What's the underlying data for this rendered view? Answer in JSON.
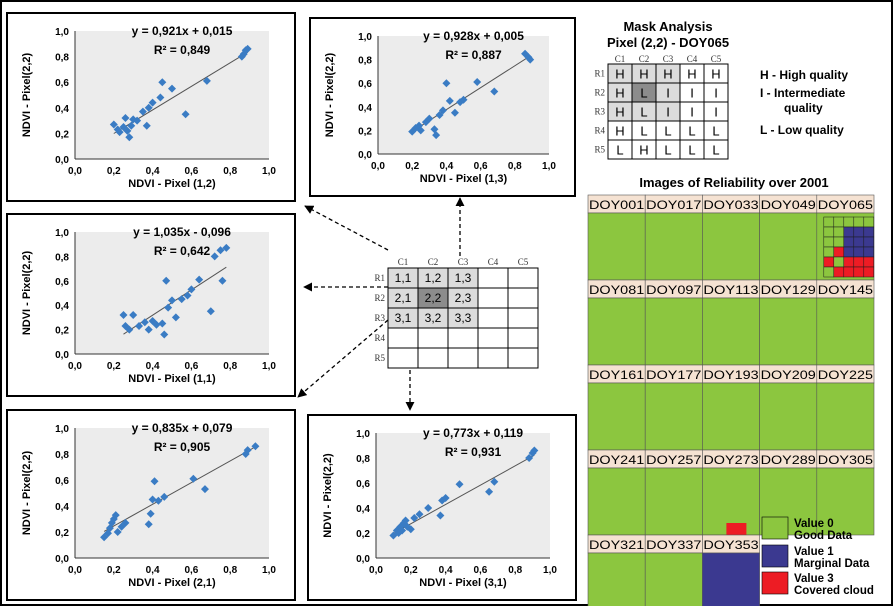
{
  "scatter_panels": [
    {
      "equation": "y = 0,921x + 0,015",
      "r2": "R² = 0,849",
      "xlabel": "NDVI - Pixel (1,2)",
      "ylabel": "NDVI - Pixel(2,2)",
      "slope": 0.921,
      "intercept": 0.015,
      "points": [
        [
          0.2,
          0.27
        ],
        [
          0.22,
          0.23
        ],
        [
          0.23,
          0.21
        ],
        [
          0.25,
          0.25
        ],
        [
          0.26,
          0.32
        ],
        [
          0.27,
          0.22
        ],
        [
          0.28,
          0.17
        ],
        [
          0.29,
          0.26
        ],
        [
          0.3,
          0.31
        ],
        [
          0.32,
          0.3
        ],
        [
          0.35,
          0.37
        ],
        [
          0.37,
          0.26
        ],
        [
          0.38,
          0.4
        ],
        [
          0.4,
          0.44
        ],
        [
          0.44,
          0.48
        ],
        [
          0.45,
          0.6
        ],
        [
          0.5,
          0.55
        ],
        [
          0.57,
          0.35
        ],
        [
          0.68,
          0.61
        ],
        [
          0.86,
          0.8
        ],
        [
          0.87,
          0.82
        ],
        [
          0.88,
          0.85
        ],
        [
          0.89,
          0.86
        ]
      ]
    },
    {
      "equation": "y = 0,928x + 0,005",
      "r2": "R² = 0,887",
      "xlabel": "NDVI - Pixel (1,3)",
      "ylabel": "NDVI - Pixel(2,2)",
      "slope": 0.928,
      "intercept": 0.005,
      "points": [
        [
          0.2,
          0.19
        ],
        [
          0.22,
          0.22
        ],
        [
          0.24,
          0.24
        ],
        [
          0.25,
          0.2
        ],
        [
          0.28,
          0.27
        ],
        [
          0.3,
          0.3
        ],
        [
          0.33,
          0.21
        ],
        [
          0.34,
          0.16
        ],
        [
          0.36,
          0.33
        ],
        [
          0.38,
          0.37
        ],
        [
          0.4,
          0.6
        ],
        [
          0.42,
          0.45
        ],
        [
          0.45,
          0.35
        ],
        [
          0.48,
          0.44
        ],
        [
          0.5,
          0.46
        ],
        [
          0.58,
          0.61
        ],
        [
          0.68,
          0.53
        ],
        [
          0.86,
          0.85
        ],
        [
          0.88,
          0.82
        ],
        [
          0.89,
          0.8
        ]
      ]
    },
    {
      "equation": "y = 1,035x - 0,096",
      "r2": "R² = 0,642",
      "xlabel": "NDVI - Pixel (1,1)",
      "ylabel": "NDVI - Pixel(2,2)",
      "slope": 1.035,
      "intercept": -0.096,
      "points": [
        [
          0.25,
          0.32
        ],
        [
          0.26,
          0.23
        ],
        [
          0.28,
          0.2
        ],
        [
          0.3,
          0.32
        ],
        [
          0.33,
          0.23
        ],
        [
          0.36,
          0.26
        ],
        [
          0.38,
          0.2
        ],
        [
          0.4,
          0.27
        ],
        [
          0.42,
          0.24
        ],
        [
          0.45,
          0.25
        ],
        [
          0.46,
          0.16
        ],
        [
          0.47,
          0.6
        ],
        [
          0.48,
          0.38
        ],
        [
          0.5,
          0.44
        ],
        [
          0.52,
          0.3
        ],
        [
          0.55,
          0.45
        ],
        [
          0.58,
          0.48
        ],
        [
          0.6,
          0.53
        ],
        [
          0.64,
          0.61
        ],
        [
          0.7,
          0.35
        ],
        [
          0.72,
          0.8
        ],
        [
          0.75,
          0.85
        ],
        [
          0.78,
          0.87
        ],
        [
          0.76,
          0.6
        ]
      ]
    },
    {
      "equation": "y = 0,835x + 0,079",
      "r2": "R² = 0,905",
      "xlabel": "NDVI - Pixel (2,1)",
      "ylabel": "NDVI - Pixel(2,2)",
      "slope": 0.835,
      "intercept": 0.079,
      "points": [
        [
          0.15,
          0.16
        ],
        [
          0.17,
          0.19
        ],
        [
          0.18,
          0.23
        ],
        [
          0.19,
          0.27
        ],
        [
          0.2,
          0.3
        ],
        [
          0.21,
          0.33
        ],
        [
          0.22,
          0.2
        ],
        [
          0.24,
          0.24
        ],
        [
          0.26,
          0.27
        ],
        [
          0.38,
          0.26
        ],
        [
          0.39,
          0.34
        ],
        [
          0.4,
          0.45
        ],
        [
          0.41,
          0.59
        ],
        [
          0.43,
          0.44
        ],
        [
          0.46,
          0.47
        ],
        [
          0.61,
          0.61
        ],
        [
          0.67,
          0.53
        ],
        [
          0.88,
          0.8
        ],
        [
          0.89,
          0.83
        ],
        [
          0.93,
          0.86
        ]
      ]
    },
    {
      "equation": "y = 0,773x + 0,119",
      "r2": "R² = 0,931",
      "xlabel": "NDVI - Pixel (3,1)",
      "ylabel": "NDVI - Pixel(2,2)",
      "slope": 0.773,
      "intercept": 0.119,
      "points": [
        [
          0.1,
          0.18
        ],
        [
          0.12,
          0.22
        ],
        [
          0.13,
          0.2
        ],
        [
          0.14,
          0.25
        ],
        [
          0.15,
          0.22
        ],
        [
          0.16,
          0.28
        ],
        [
          0.17,
          0.3
        ],
        [
          0.18,
          0.25
        ],
        [
          0.2,
          0.23
        ],
        [
          0.22,
          0.32
        ],
        [
          0.25,
          0.35
        ],
        [
          0.3,
          0.4
        ],
        [
          0.37,
          0.34
        ],
        [
          0.38,
          0.46
        ],
        [
          0.4,
          0.48
        ],
        [
          0.48,
          0.59
        ],
        [
          0.65,
          0.53
        ],
        [
          0.68,
          0.61
        ],
        [
          0.88,
          0.8
        ],
        [
          0.9,
          0.84
        ],
        [
          0.91,
          0.86
        ]
      ]
    }
  ],
  "axis_ticks": {
    "x": [
      "0,0",
      "0,2",
      "0,4",
      "0,6",
      "0,8",
      "1,0"
    ],
    "y": [
      "0,0",
      "0,2",
      "0,4",
      "0,6",
      "0,8",
      "1,0"
    ]
  },
  "center_grid": {
    "col_headers": [
      "C1",
      "C2",
      "C3",
      "C4",
      "C5"
    ],
    "row_headers": [
      "R1",
      "R2",
      "R3",
      "R4",
      "R5"
    ],
    "cells": [
      [
        "1,1",
        "1,2",
        "1,3",
        "",
        ""
      ],
      [
        "2,1",
        "2,2",
        "2,3",
        "",
        ""
      ],
      [
        "3,1",
        "3,2",
        "3,3",
        "",
        ""
      ],
      [
        "",
        "",
        "",
        "",
        ""
      ],
      [
        "",
        "",
        "",
        "",
        ""
      ]
    ]
  },
  "mask": {
    "title": "Mask Analysis",
    "subtitle": "Pixel (2,2) - DOY065",
    "col_headers": [
      "C1",
      "C2",
      "C3",
      "C4",
      "C5"
    ],
    "row_headers": [
      "R1",
      "R2",
      "R3",
      "R4",
      "R5"
    ],
    "cells": [
      [
        "H",
        "H",
        "H",
        "H",
        "H"
      ],
      [
        "H",
        "L",
        "I",
        "I",
        "I"
      ],
      [
        "H",
        "L",
        "I",
        "I",
        "I"
      ],
      [
        "H",
        "L",
        "L",
        "L",
        "L"
      ],
      [
        "L",
        "H",
        "L",
        "L",
        "L"
      ]
    ],
    "legend": [
      "H - High quality",
      "I  - Intermediate",
      "quality",
      "L  - Low quality"
    ]
  },
  "reliability": {
    "title": "Images of Reliability over 2001",
    "rows": [
      [
        "DOY001",
        "DOY017",
        "DOY033",
        "DOY049",
        "DOY065"
      ],
      [
        "DOY081",
        "DOY097",
        "DOY113",
        "DOY129",
        "DOY145"
      ],
      [
        "DOY161",
        "DOY177",
        "DOY193",
        "DOY209",
        "DOY225"
      ],
      [
        "DOY241",
        "DOY257",
        "DOY273",
        "DOY289",
        "DOY305"
      ],
      [
        "DOY321",
        "DOY337",
        "DOY353"
      ]
    ]
  },
  "legend": [
    {
      "value": "Value 0",
      "desc": "Good Data",
      "color": "#8cc63f"
    },
    {
      "value": "Value 1",
      "desc": "Marginal Data",
      "color": "#3b3990"
    },
    {
      "value": "Value 3",
      "desc": "Covered cloud",
      "color": "#ed1c24"
    }
  ],
  "colors": {
    "good": "#8cc63f",
    "marginal": "#3b3990",
    "cloud": "#ed1c24",
    "label_bg": "#f5e2d2",
    "point": "#3a7cc4",
    "plot_bg": "#ececec"
  }
}
